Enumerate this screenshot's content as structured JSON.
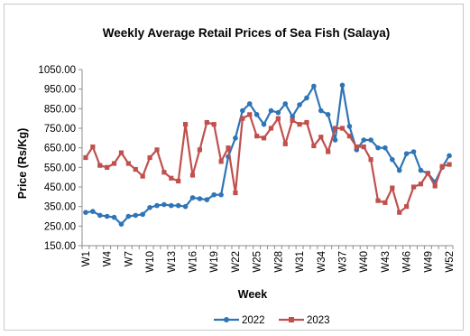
{
  "chart_data": {
    "type": "line",
    "title": "Weekly Average Retail Prices of  Sea Fish (Salaya)",
    "xlabel": "Week",
    "ylabel": "Price (Rs/Kg)",
    "ylim": [
      150,
      1050
    ],
    "yticks": [
      "1050.00",
      "950.00",
      "850.00",
      "750.00",
      "650.00",
      "550.00",
      "450.00",
      "350.00",
      "250.00",
      "150.00"
    ],
    "xtick_labels": [
      "W1",
      "W4",
      "W7",
      "W10",
      "W13",
      "W16",
      "W19",
      "W22",
      "W25",
      "W28",
      "W31",
      "W34",
      "W37",
      "W40",
      "W43",
      "W46",
      "W49",
      "W52"
    ],
    "x": [
      "W1",
      "W2",
      "W3",
      "W4",
      "W5",
      "W6",
      "W7",
      "W8",
      "W9",
      "W10",
      "W11",
      "W12",
      "W13",
      "W14",
      "W15",
      "W16",
      "W17",
      "W18",
      "W19",
      "W20",
      "W21",
      "W22",
      "W23",
      "W24",
      "W25",
      "W26",
      "W27",
      "W28",
      "W29",
      "W30",
      "W31",
      "W32",
      "W33",
      "W34",
      "W35",
      "W36",
      "W37",
      "W38",
      "W39",
      "W40",
      "W41",
      "W42",
      "W43",
      "W44",
      "W45",
      "W46",
      "W47",
      "W48",
      "W49",
      "W50",
      "W51",
      "W52"
    ],
    "grid": false,
    "legend_position": "bottom",
    "series": [
      {
        "name": "2022",
        "color": "#2e75b6",
        "marker": "circle",
        "values": [
          320,
          325,
          305,
          300,
          295,
          260,
          300,
          305,
          310,
          345,
          355,
          360,
          355,
          355,
          350,
          395,
          390,
          385,
          410,
          410,
          605,
          700,
          840,
          875,
          820,
          770,
          840,
          830,
          875,
          810,
          870,
          905,
          965,
          840,
          820,
          690,
          970,
          760,
          640,
          690,
          690,
          650,
          650,
          590,
          535,
          620,
          630,
          535,
          520,
          475,
          550,
          610
        ]
      },
      {
        "name": "2023",
        "color": "#c0504d",
        "marker": "square",
        "values": [
          600,
          655,
          560,
          550,
          570,
          625,
          570,
          540,
          505,
          600,
          640,
          525,
          495,
          480,
          770,
          510,
          640,
          780,
          770,
          580,
          650,
          420,
          800,
          820,
          710,
          700,
          750,
          800,
          670,
          790,
          770,
          780,
          660,
          705,
          630,
          750,
          750,
          710,
          655,
          655,
          590,
          380,
          370,
          445,
          320,
          350,
          450,
          465,
          520,
          455,
          555,
          565
        ]
      }
    ]
  }
}
